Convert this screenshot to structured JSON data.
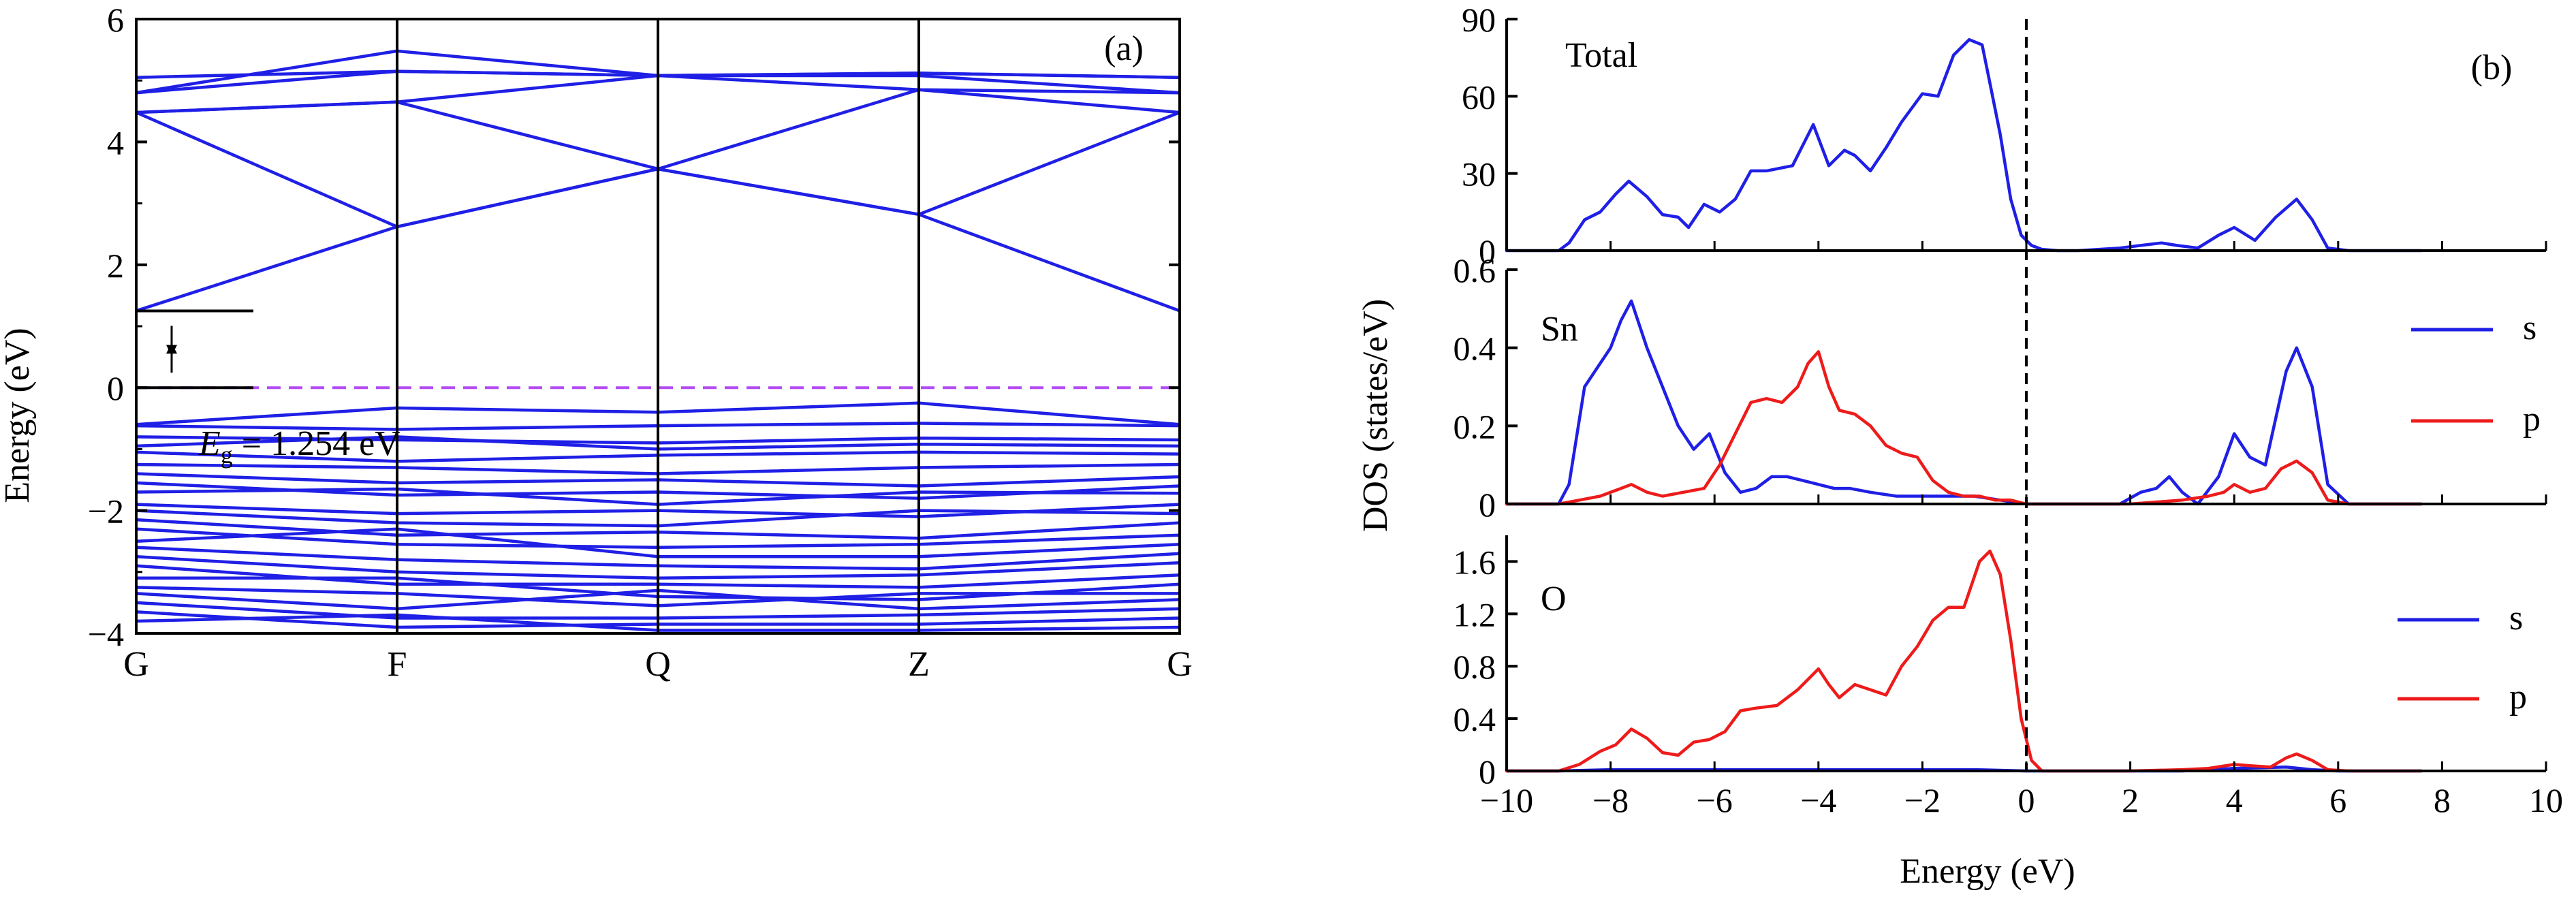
{
  "colors": {
    "band": "#1f1fe6",
    "dos_s": "#1f1fe6",
    "dos_p": "#ee1b1b",
    "fermi_dash_a": "#b44cf2",
    "axis": "#000000"
  },
  "chart_data": [
    {
      "type": "line",
      "panel_label": "(a)",
      "ylabel": "Energy (eV)",
      "x_ticks": [
        "G",
        "F",
        "Q",
        "Z",
        "G"
      ],
      "ylim": [
        -4,
        6
      ],
      "y_ticks": [
        "−4",
        "−2",
        "0",
        "2",
        "4",
        "6"
      ],
      "y_tick_values": [
        -4,
        -2,
        0,
        2,
        4,
        6
      ],
      "annotation": {
        "symbol": "E",
        "subscript": "g",
        "text": " = 1.254 eV",
        "gap_value": 1.254
      },
      "fermi_level": 0,
      "series": [
        {
          "values": [
            1.25,
            2.62,
            3.56,
            2.82,
            1.25
          ]
        },
        {
          "values": [
            4.48,
            2.62,
            3.56,
            2.82,
            4.48
          ]
        },
        {
          "values": [
            4.48,
            4.65,
            3.56,
            4.85,
            4.48
          ]
        },
        {
          "values": [
            4.48,
            4.65,
            5.08,
            4.85,
            4.8
          ]
        },
        {
          "values": [
            4.8,
            5.15,
            5.08,
            5.08,
            4.8
          ]
        },
        {
          "values": [
            4.8,
            5.48,
            5.08,
            5.12,
            5.05
          ]
        },
        {
          "values": [
            5.05,
            5.15,
            5.08,
            5.12,
            5.05
          ]
        },
        {
          "values": [
            -0.6,
            -0.33,
            -0.4,
            -0.25,
            -0.6
          ]
        },
        {
          "values": [
            -0.62,
            -0.68,
            -0.62,
            -0.58,
            -0.62
          ]
        },
        {
          "values": [
            -0.8,
            -0.85,
            -0.9,
            -0.82,
            -0.85
          ]
        },
        {
          "values": [
            -0.95,
            -0.8,
            -1.0,
            -0.92,
            -0.95
          ]
        },
        {
          "values": [
            -1.05,
            -1.2,
            -1.1,
            -1.05,
            -1.08
          ]
        },
        {
          "values": [
            -1.25,
            -1.3,
            -1.4,
            -1.3,
            -1.25
          ]
        },
        {
          "values": [
            -1.4,
            -1.55,
            -1.5,
            -1.6,
            -1.45
          ]
        },
        {
          "values": [
            -1.55,
            -1.75,
            -1.7,
            -1.8,
            -1.6
          ]
        },
        {
          "values": [
            -1.7,
            -1.65,
            -1.9,
            -1.7,
            -1.72
          ]
        },
        {
          "values": [
            -1.9,
            -2.05,
            -2.0,
            -2.1,
            -1.9
          ]
        },
        {
          "values": [
            -2.0,
            -2.2,
            -2.25,
            -2.0,
            -2.05
          ]
        },
        {
          "values": [
            -2.15,
            -2.4,
            -2.35,
            -2.45,
            -2.2
          ]
        },
        {
          "values": [
            -2.3,
            -2.55,
            -2.6,
            -2.55,
            -2.4
          ]
        },
        {
          "values": [
            -2.5,
            -2.3,
            -2.75,
            -2.75,
            -2.55
          ]
        },
        {
          "values": [
            -2.6,
            -2.8,
            -2.9,
            -2.95,
            -2.7
          ]
        },
        {
          "values": [
            -2.75,
            -3.0,
            -3.1,
            -3.05,
            -2.85
          ]
        },
        {
          "values": [
            -2.9,
            -3.2,
            -3.2,
            -3.25,
            -3.05
          ]
        },
        {
          "values": [
            -3.1,
            -3.1,
            -3.4,
            -3.45,
            -3.2
          ]
        },
        {
          "values": [
            -3.25,
            -3.35,
            -3.55,
            -3.35,
            -3.35
          ]
        },
        {
          "values": [
            -3.35,
            -3.6,
            -3.3,
            -3.6,
            -3.45
          ]
        },
        {
          "values": [
            -3.5,
            -3.75,
            -3.75,
            -3.7,
            -3.6
          ]
        },
        {
          "values": [
            -3.65,
            -3.9,
            -3.85,
            -3.85,
            -3.75
          ]
        },
        {
          "values": [
            -3.8,
            -3.7,
            -3.95,
            -3.95,
            -3.9
          ]
        }
      ]
    },
    {
      "type": "line",
      "panel_label": "(b)",
      "xlabel": "Energy (eV)",
      "ylabel": "DOS (states/eV)",
      "xlim": [
        -10,
        10
      ],
      "x_ticks": [
        "−10",
        "−8",
        "−6",
        "−4",
        "−2",
        "0",
        "2",
        "4",
        "6",
        "8",
        "10"
      ],
      "x_tick_values": [
        -10,
        -8,
        -6,
        -4,
        -2,
        0,
        2,
        4,
        6,
        8,
        10
      ],
      "fermi_level": 0,
      "panels": [
        {
          "label": "Total",
          "ylim": [
            0,
            90
          ],
          "y_ticks": [
            "0",
            "30",
            "60",
            "90"
          ],
          "y_tick_values": [
            0,
            30,
            60,
            90
          ],
          "series": [
            {
              "color": "#1f1fe6",
              "x": [
                -10,
                -9.0,
                -8.8,
                -8.5,
                -8.2,
                -7.9,
                -7.65,
                -7.3,
                -7.0,
                -6.7,
                -6.5,
                -6.2,
                -5.9,
                -5.6,
                -5.3,
                -5.0,
                -4.5,
                -4.1,
                -3.8,
                -3.5,
                -3.3,
                -3.0,
                -2.7,
                -2.4,
                -2.0,
                -1.7,
                -1.4,
                -1.1,
                -0.85,
                -0.7,
                -0.5,
                -0.3,
                -0.1,
                0.1,
                0.3,
                0.6,
                1.0,
                1.8,
                2.2,
                2.6,
                2.9,
                3.3,
                3.7,
                4.0,
                4.4,
                4.8,
                5.2,
                5.5,
                5.8,
                6.2,
                7.6
              ],
              "y": [
                0,
                0,
                3,
                12,
                15,
                22,
                27,
                21,
                14,
                13,
                9,
                18,
                15,
                20,
                31,
                31,
                33,
                49,
                33,
                39,
                37,
                31,
                40,
                50,
                61,
                60,
                76,
                82,
                80,
                65,
                45,
                20,
                6,
                2,
                0.5,
                0,
                0,
                1,
                2,
                3,
                2,
                1,
                6,
                9,
                4,
                13,
                20,
                12,
                1,
                0,
                0
              ]
            }
          ]
        },
        {
          "label": "Sn",
          "ylim": [
            0,
            0.6
          ],
          "y_ticks": [
            "0",
            "0.2",
            "0.4",
            "0.6"
          ],
          "y_tick_values": [
            0,
            0.2,
            0.4,
            0.6
          ],
          "legend": [
            {
              "name": "s",
              "color": "#1f1fe6"
            },
            {
              "name": "p",
              "color": "#ee1b1b"
            }
          ],
          "series": [
            {
              "name": "s",
              "color": "#1f1fe6",
              "x": [
                -10,
                -9.0,
                -8.8,
                -8.5,
                -8.2,
                -8.0,
                -7.8,
                -7.6,
                -7.3,
                -7.0,
                -6.7,
                -6.4,
                -6.1,
                -5.8,
                -5.5,
                -5.2,
                -4.9,
                -4.6,
                -4.3,
                -4.0,
                -3.7,
                -3.4,
                -3.0,
                -2.5,
                -2.0,
                -1.5,
                -1.0,
                -0.5,
                0,
                1.0,
                1.8,
                2.2,
                2.5,
                2.75,
                3.0,
                3.3,
                3.7,
                4.0,
                4.3,
                4.6,
                5.0,
                5.2,
                5.5,
                5.8,
                6.2,
                7.6
              ],
              "y": [
                0,
                0,
                0.05,
                0.3,
                0.36,
                0.4,
                0.47,
                0.52,
                0.4,
                0.3,
                0.2,
                0.14,
                0.18,
                0.08,
                0.03,
                0.04,
                0.07,
                0.07,
                0.06,
                0.05,
                0.04,
                0.04,
                0.03,
                0.02,
                0.02,
                0.02,
                0.02,
                0.01,
                0,
                0,
                0,
                0.03,
                0.04,
                0.07,
                0.03,
                0,
                0.07,
                0.18,
                0.12,
                0.1,
                0.34,
                0.4,
                0.3,
                0.05,
                0,
                0
              ]
            },
            {
              "name": "p",
              "color": "#ee1b1b",
              "x": [
                -10,
                -9.0,
                -8.6,
                -8.2,
                -7.8,
                -7.6,
                -7.3,
                -7.0,
                -6.6,
                -6.2,
                -5.9,
                -5.6,
                -5.3,
                -5.0,
                -4.7,
                -4.4,
                -4.2,
                -4.0,
                -3.8,
                -3.6,
                -3.3,
                -3.0,
                -2.7,
                -2.4,
                -2.1,
                -1.8,
                -1.5,
                -1.2,
                -0.9,
                -0.6,
                -0.3,
                0,
                2.0,
                3.0,
                3.5,
                3.8,
                4.0,
                4.3,
                4.6,
                4.9,
                5.2,
                5.5,
                5.8,
                6.2,
                7.6
              ],
              "y": [
                0,
                0,
                0.01,
                0.02,
                0.04,
                0.05,
                0.03,
                0.02,
                0.03,
                0.04,
                0.1,
                0.18,
                0.26,
                0.27,
                0.26,
                0.3,
                0.36,
                0.39,
                0.3,
                0.24,
                0.23,
                0.2,
                0.15,
                0.13,
                0.12,
                0.06,
                0.03,
                0.02,
                0.02,
                0.01,
                0.01,
                0,
                0,
                0.01,
                0.02,
                0.03,
                0.05,
                0.03,
                0.04,
                0.09,
                0.11,
                0.08,
                0.01,
                0,
                0
              ]
            }
          ]
        },
        {
          "label": "O",
          "ylim": [
            0,
            1.8
          ],
          "y_ticks": [
            "0",
            "0.4",
            "0.8",
            "1.2",
            "1.6"
          ],
          "y_tick_values": [
            0,
            0.4,
            0.8,
            1.2,
            1.6
          ],
          "legend": [
            {
              "name": "s",
              "color": "#1f1fe6"
            },
            {
              "name": "p",
              "color": "#ee1b1b"
            }
          ],
          "series": [
            {
              "name": "s",
              "color": "#1f1fe6",
              "x": [
                -10,
                -9.0,
                -8.0,
                -7.0,
                -6.0,
                -5.0,
                -4.0,
                -3.0,
                -2.0,
                -1.0,
                0,
                2.0,
                3.0,
                4.0,
                5.0,
                5.5,
                6.0,
                7.6
              ],
              "y": [
                0,
                0,
                0.01,
                0.01,
                0.01,
                0.01,
                0.01,
                0.01,
                0.01,
                0.01,
                0,
                0,
                0,
                0.02,
                0.03,
                0.01,
                0,
                0
              ]
            },
            {
              "name": "p",
              "color": "#ee1b1b",
              "x": [
                -10,
                -9.0,
                -8.6,
                -8.2,
                -7.9,
                -7.6,
                -7.3,
                -7.0,
                -6.7,
                -6.4,
                -6.1,
                -5.8,
                -5.5,
                -5.2,
                -4.8,
                -4.4,
                -4.0,
                -3.8,
                -3.6,
                -3.3,
                -3.0,
                -2.7,
                -2.4,
                -2.1,
                -1.8,
                -1.5,
                -1.2,
                -0.9,
                -0.7,
                -0.5,
                -0.3,
                -0.1,
                0.1,
                0.3,
                2.0,
                3.0,
                3.5,
                4.0,
                4.3,
                4.7,
                5.0,
                5.2,
                5.5,
                5.8,
                6.2,
                7.6
              ],
              "y": [
                0,
                0,
                0.05,
                0.15,
                0.2,
                0.32,
                0.25,
                0.14,
                0.12,
                0.22,
                0.24,
                0.3,
                0.46,
                0.48,
                0.5,
                0.62,
                0.78,
                0.66,
                0.56,
                0.66,
                0.62,
                0.58,
                0.8,
                0.95,
                1.15,
                1.25,
                1.25,
                1.6,
                1.68,
                1.5,
                1.0,
                0.4,
                0.08,
                0,
                0,
                0.01,
                0.02,
                0.05,
                0.04,
                0.03,
                0.1,
                0.13,
                0.08,
                0.01,
                0,
                0
              ]
            }
          ]
        }
      ]
    }
  ]
}
